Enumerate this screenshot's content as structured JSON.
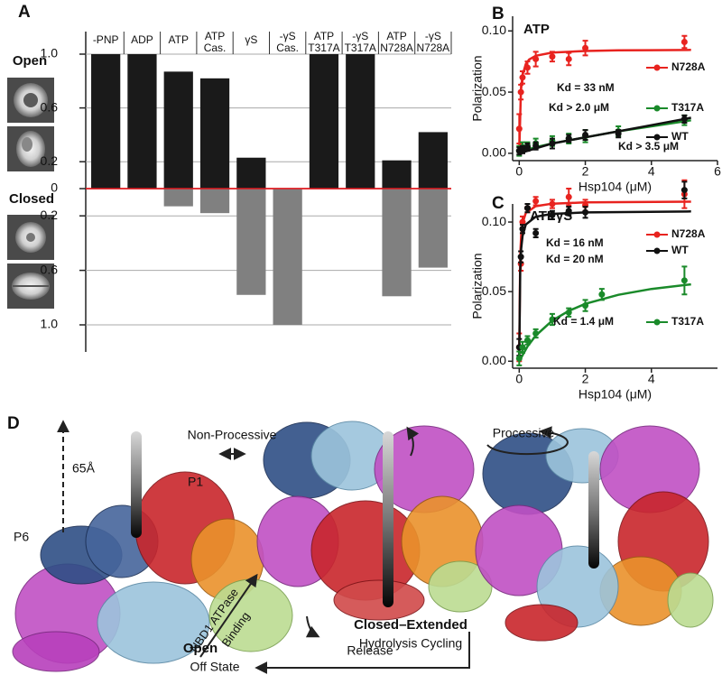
{
  "panel_labels": [
    "A",
    "B",
    "C",
    "D"
  ],
  "chart_data": [
    {
      "type": "bar",
      "categories": [
        [
          "-PNP"
        ],
        [
          "ADP"
        ],
        [
          "ATP"
        ],
        [
          "ATP",
          "Cas."
        ],
        [
          "γS"
        ],
        [
          "-γS",
          "Cas."
        ],
        [
          "ATP",
          "T317A"
        ],
        [
          "-γS",
          "T317A"
        ],
        [
          "ATP",
          "N728A"
        ],
        [
          "-γS",
          "N728A"
        ]
      ],
      "series": [
        {
          "name": "Open",
          "color": "#1a1a1a",
          "values": [
            1,
            1,
            0.87,
            0.82,
            0.23,
            0,
            1,
            1,
            0.21,
            0.42
          ]
        },
        {
          "name": "Closed",
          "color": "#808080",
          "axis": "y2",
          "values": [
            0,
            0,
            0.13,
            0.18,
            0.78,
            1,
            0,
            0,
            0.79,
            0.58
          ]
        }
      ],
      "ylim": [
        0,
        1
      ],
      "yticks": [
        0,
        0.2,
        0.6,
        {
          "value": 1,
          "label": "1.0"
        }
      ],
      "y2lim": [
        0,
        1
      ],
      "y2ticks": [
        0.2,
        0.6,
        {
          "value": 1,
          "label": "1.0"
        }
      ],
      "grid": true,
      "zero_line_color": "#e0191f"
    },
    {
      "type": "line",
      "title": "ATP",
      "x_label": "Hsp104 (μM)",
      "y_label": "Polarization",
      "xlim": [
        -0.2,
        6
      ],
      "xticks": [
        0,
        2,
        4,
        6
      ],
      "ylim": [
        -0.006,
        0.112
      ],
      "yticks": [
        {
          "value": 0,
          "label": "0.00"
        },
        0.05,
        {
          "value": 0.1,
          "label": "0.10"
        }
      ],
      "series": [
        {
          "name": "N728A",
          "color": "#e8231f",
          "x": [
            0,
            0.05,
            0.1,
            0.25,
            0.5,
            1,
            1.5,
            2,
            5
          ],
          "values": [
            0.02,
            0.05,
            0.062,
            0.07,
            0.077,
            0.079,
            0.077,
            0.086,
            0.091
          ],
          "errors": [
            0.012,
            0.006,
            0.005,
            0.005,
            0.006,
            0.004,
            0.005,
            0.006,
            0.005
          ],
          "fit_x": [
            0,
            0.05,
            0.1,
            0.2,
            0.3,
            0.5,
            1,
            2,
            3,
            4,
            5.2
          ],
          "fit_values": [
            0,
            0.0512,
            0.0639,
            0.073,
            0.0766,
            0.0797,
            0.0823,
            0.0836,
            0.0841,
            0.0843,
            0.0845
          ]
        },
        {
          "name": "T317A",
          "color": "#1a8a2a",
          "x": [
            0,
            0.1,
            0.25,
            0.5,
            1,
            1.5,
            2,
            3,
            5
          ],
          "values": [
            0.002,
            0.005,
            0.006,
            0.008,
            0.01,
            0.012,
            0.014,
            0.018,
            0.027
          ],
          "errors": [
            0.004,
            0.004,
            0.003,
            0.004,
            0.004,
            0.004,
            0.005,
            0.004,
            0.004
          ],
          "fit_x": [
            0,
            0.5,
            1,
            2,
            3,
            4,
            5.2
          ],
          "fit_values": [
            0.001,
            0.005,
            0.008,
            0.013,
            0.018,
            0.022,
            0.027
          ]
        },
        {
          "name": "WT",
          "color": "#111111",
          "x": [
            0,
            0.1,
            0.25,
            0.5,
            1,
            1.5,
            2,
            3,
            5
          ],
          "values": [
            0.002,
            0.003,
            0.005,
            0.006,
            0.008,
            0.012,
            0.015,
            0.016,
            0.028
          ],
          "errors": [
            0.003,
            0.003,
            0.003,
            0.003,
            0.004,
            0.003,
            0.004,
            0.003,
            0.003
          ],
          "fit_x": [
            0,
            0.5,
            1,
            2,
            3,
            4,
            5.2
          ],
          "fit_values": [
            0,
            0.004,
            0.008,
            0.013,
            0.018,
            0.023,
            0.029
          ]
        }
      ],
      "annotations": [
        {
          "text": "Kd = 33 nM",
          "color": "#e8231f"
        },
        {
          "text": "Kd > 2.0 μM",
          "color": "#1a8a2a"
        },
        {
          "text": "Kd > 3.5 μM",
          "color": "#111111"
        }
      ]
    },
    {
      "type": "line",
      "title": "ATPγS",
      "x_label": "Hsp104 (μM)",
      "y_label": "Polarization",
      "xlim": [
        -0.2,
        6
      ],
      "xticks": [
        0,
        2,
        4
      ],
      "ylim": [
        -0.005,
        0.113
      ],
      "yticks": [
        {
          "value": 0,
          "label": "0.00"
        },
        0.05,
        {
          "value": 0.1,
          "label": "0.10"
        }
      ],
      "series": [
        {
          "name": "N728A",
          "color": "#e8231f",
          "x": [
            0,
            0.05,
            0.1,
            0.25,
            0.5,
            1,
            1.5,
            2,
            5
          ],
          "values": [
            0.01,
            0.07,
            0.1,
            0.11,
            0.115,
            0.113,
            0.118,
            0.112,
            0.12
          ],
          "errors": [
            0.01,
            0.005,
            0.004,
            0.003,
            0.003,
            0.003,
            0.006,
            0.004,
            0.01
          ],
          "fit_x": [
            0,
            0.03,
            0.06,
            0.1,
            0.2,
            0.5,
            1,
            2,
            5.2
          ],
          "fit_values": [
            0,
            0.075,
            0.0908,
            0.0991,
            0.1065,
            0.1114,
            0.1132,
            0.1141,
            0.1146
          ]
        },
        {
          "name": "WT",
          "color": "#111111",
          "x": [
            0,
            0.05,
            0.1,
            0.25,
            0.5,
            1,
            1.5,
            2,
            5
          ],
          "values": [
            0.01,
            0.075,
            0.095,
            0.11,
            0.092,
            0.105,
            0.108,
            0.107,
            0.123
          ],
          "errors": [
            0.006,
            0.004,
            0.003,
            0.003,
            0.003,
            0.003,
            0.003,
            0.004,
            0.006
          ],
          "fit_x": [
            0,
            0.03,
            0.06,
            0.1,
            0.2,
            0.5,
            1,
            2,
            5.2
          ],
          "fit_values": [
            0,
            0.0648,
            0.081,
            0.09,
            0.0982,
            0.1038,
            0.1059,
            0.1069,
            0.1076
          ]
        },
        {
          "name": "T317A",
          "color": "#1a8a2a",
          "x": [
            0,
            0.1,
            0.25,
            0.5,
            1,
            1.5,
            2,
            2.5,
            5
          ],
          "values": [
            0.002,
            0.01,
            0.015,
            0.02,
            0.03,
            0.035,
            0.04,
            0.048,
            0.058
          ],
          "errors": [
            0.005,
            0.004,
            0.003,
            0.003,
            0.004,
            0.003,
            0.004,
            0.004,
            0.01
          ],
          "fit_x": [
            0,
            0.25,
            0.5,
            1,
            1.5,
            2,
            3,
            4,
            5.2
          ],
          "fit_values": [
            0,
            0.0106,
            0.0184,
            0.0292,
            0.0362,
            0.0412,
            0.0477,
            0.0519,
            0.0552
          ]
        }
      ],
      "annotations": [
        {
          "text": "Kd = 16 nM",
          "color": "#e8231f"
        },
        {
          "text": "Kd = 20 nM",
          "color": "#111111"
        },
        {
          "text": "Kd = 1.4 μM",
          "color": "#1a8a2a"
        }
      ]
    }
  ],
  "diagram": {
    "distance": "65Å",
    "p1": "P1",
    "p6": "P6",
    "non_processive": "Non-Processive",
    "processive": "Processive",
    "binding_lines": [
      "NBD1 ATPase",
      "Binding"
    ],
    "closed_state": "Closed–Extended",
    "closed_sub": "Hydrolysis Cycling",
    "open_state": "Open",
    "open_sub": "Off State",
    "release": "Release"
  }
}
